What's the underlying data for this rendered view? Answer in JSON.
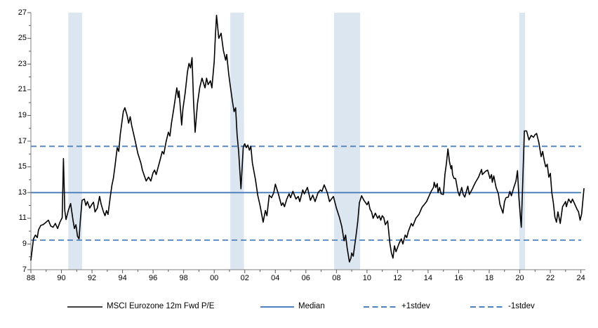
{
  "chart_data": {
    "type": "line",
    "title": "",
    "xlabel": "",
    "ylabel": "",
    "x_axis": {
      "min_year": 1988,
      "max_year": 2024,
      "major_tick_every_years": 2,
      "minor_tick_every_years": 1,
      "tick_labels": [
        "88",
        "90",
        "92",
        "94",
        "96",
        "98",
        "00",
        "02",
        "04",
        "06",
        "08",
        "10",
        "12",
        "14",
        "16",
        "18",
        "20",
        "22",
        "24"
      ]
    },
    "y_axis": {
      "min": 7,
      "max": 27,
      "major_tick_step": 2,
      "minor_tick_step": 1,
      "tick_labels": [
        "7",
        "9",
        "11",
        "13",
        "15",
        "17",
        "19",
        "21",
        "23",
        "25",
        "27"
      ]
    },
    "reference_lines": {
      "median": {
        "value": 13.0,
        "style": "solid"
      },
      "plus1stdev": {
        "value": 16.6,
        "style": "dashed"
      },
      "minus1stdev": {
        "value": 9.3,
        "style": "dashed"
      }
    },
    "shaded_bands_years": [
      [
        1990.45,
        1991.35
      ],
      [
        2001.05,
        2001.95
      ],
      [
        2007.85,
        2009.55
      ],
      [
        2019.97,
        2020.35
      ]
    ],
    "legend": [
      {
        "label": "MSCI Eurozone 12m Fwd P/E",
        "style": "solid",
        "color": "#000000"
      },
      {
        "label": "Median",
        "style": "solid",
        "color": "#4F81BD"
      },
      {
        "label": "+1stdev",
        "style": "dashed",
        "color": "#4F81BD"
      },
      {
        "label": "-1stdev",
        "style": "dashed",
        "color": "#4F81BD"
      }
    ],
    "series": [
      {
        "name": "MSCI Eurozone 12m Fwd P/E",
        "points": [
          [
            1988.0,
            7.75
          ],
          [
            1988.08,
            8.5
          ],
          [
            1988.17,
            9.4
          ],
          [
            1988.3,
            9.7
          ],
          [
            1988.42,
            9.5
          ],
          [
            1988.5,
            10.1
          ],
          [
            1988.65,
            10.45
          ],
          [
            1988.8,
            10.5
          ],
          [
            1988.95,
            10.65
          ],
          [
            1989.15,
            10.85
          ],
          [
            1989.3,
            10.4
          ],
          [
            1989.45,
            10.3
          ],
          [
            1989.6,
            10.6
          ],
          [
            1989.75,
            10.2
          ],
          [
            1989.9,
            10.7
          ],
          [
            1990.05,
            11.05
          ],
          [
            1990.13,
            15.65
          ],
          [
            1990.22,
            11.6
          ],
          [
            1990.3,
            10.9
          ],
          [
            1990.45,
            11.6
          ],
          [
            1990.6,
            12.15
          ],
          [
            1990.75,
            10.9
          ],
          [
            1990.85,
            10.2
          ],
          [
            1990.95,
            10.5
          ],
          [
            1991.05,
            9.6
          ],
          [
            1991.15,
            9.4
          ],
          [
            1991.25,
            11.0
          ],
          [
            1991.35,
            12.4
          ],
          [
            1991.5,
            12.5
          ],
          [
            1991.6,
            12.0
          ],
          [
            1991.7,
            12.3
          ],
          [
            1991.85,
            11.8
          ],
          [
            1992.0,
            12.1
          ],
          [
            1992.1,
            12.25
          ],
          [
            1992.2,
            11.5
          ],
          [
            1992.35,
            11.8
          ],
          [
            1992.5,
            12.7
          ],
          [
            1992.6,
            12.1
          ],
          [
            1992.75,
            11.5
          ],
          [
            1992.85,
            11.2
          ],
          [
            1992.95,
            11.6
          ],
          [
            1993.05,
            11.3
          ],
          [
            1993.2,
            12.7
          ],
          [
            1993.3,
            13.55
          ],
          [
            1993.4,
            14.1
          ],
          [
            1993.5,
            15.0
          ],
          [
            1993.65,
            16.5
          ],
          [
            1993.75,
            16.2
          ],
          [
            1993.85,
            17.5
          ],
          [
            1993.95,
            18.4
          ],
          [
            1994.05,
            19.3
          ],
          [
            1994.15,
            19.6
          ],
          [
            1994.3,
            19.0
          ],
          [
            1994.4,
            18.4
          ],
          [
            1994.5,
            18.9
          ],
          [
            1994.6,
            18.2
          ],
          [
            1994.7,
            17.7
          ],
          [
            1994.85,
            16.9
          ],
          [
            1995.0,
            16.05
          ],
          [
            1995.2,
            15.3
          ],
          [
            1995.3,
            14.75
          ],
          [
            1995.4,
            14.4
          ],
          [
            1995.55,
            13.9
          ],
          [
            1995.7,
            14.2
          ],
          [
            1995.85,
            13.9
          ],
          [
            1996.0,
            14.55
          ],
          [
            1996.1,
            14.75
          ],
          [
            1996.2,
            14.4
          ],
          [
            1996.45,
            15.5
          ],
          [
            1996.6,
            16.2
          ],
          [
            1996.7,
            16.0
          ],
          [
            1996.85,
            16.95
          ],
          [
            1997.0,
            17.7
          ],
          [
            1997.1,
            17.4
          ],
          [
            1997.2,
            18.4
          ],
          [
            1997.35,
            19.5
          ],
          [
            1997.55,
            21.15
          ],
          [
            1997.65,
            20.4
          ],
          [
            1997.7,
            20.9
          ],
          [
            1997.8,
            19.35
          ],
          [
            1997.87,
            18.25
          ],
          [
            1997.95,
            19.5
          ],
          [
            1998.1,
            20.75
          ],
          [
            1998.25,
            22.4
          ],
          [
            1998.35,
            23.05
          ],
          [
            1998.45,
            22.7
          ],
          [
            1998.55,
            23.5
          ],
          [
            1998.65,
            20.05
          ],
          [
            1998.75,
            17.7
          ],
          [
            1998.9,
            19.9
          ],
          [
            1999.05,
            21.15
          ],
          [
            1999.2,
            21.9
          ],
          [
            1999.4,
            21.15
          ],
          [
            1999.5,
            21.9
          ],
          [
            1999.6,
            21.4
          ],
          [
            1999.75,
            21.7
          ],
          [
            1999.85,
            21.15
          ],
          [
            2000.0,
            23.2
          ],
          [
            2000.07,
            25.0
          ],
          [
            2000.15,
            26.8
          ],
          [
            2000.3,
            25.0
          ],
          [
            2000.45,
            25.4
          ],
          [
            2000.6,
            24.05
          ],
          [
            2000.75,
            23.3
          ],
          [
            2000.82,
            23.75
          ],
          [
            2000.95,
            22.2
          ],
          [
            2001.05,
            21.3
          ],
          [
            2001.2,
            20.05
          ],
          [
            2001.3,
            19.3
          ],
          [
            2001.4,
            19.6
          ],
          [
            2001.5,
            17.5
          ],
          [
            2001.6,
            16.2
          ],
          [
            2001.75,
            13.3
          ],
          [
            2001.9,
            16.55
          ],
          [
            2002.0,
            16.8
          ],
          [
            2002.1,
            16.5
          ],
          [
            2002.2,
            16.7
          ],
          [
            2002.3,
            16.3
          ],
          [
            2002.4,
            16.6
          ],
          [
            2002.5,
            15.3
          ],
          [
            2002.7,
            14.0
          ],
          [
            2002.85,
            12.8
          ],
          [
            2003.0,
            12.0
          ],
          [
            2003.2,
            10.7
          ],
          [
            2003.35,
            11.6
          ],
          [
            2003.45,
            11.2
          ],
          [
            2003.6,
            12.8
          ],
          [
            2003.75,
            12.6
          ],
          [
            2003.9,
            13.0
          ],
          [
            2004.0,
            13.65
          ],
          [
            2004.2,
            12.9
          ],
          [
            2004.4,
            12.0
          ],
          [
            2004.5,
            12.2
          ],
          [
            2004.6,
            11.9
          ],
          [
            2004.75,
            12.5
          ],
          [
            2004.9,
            12.9
          ],
          [
            2005.0,
            12.6
          ],
          [
            2005.15,
            13.1
          ],
          [
            2005.35,
            12.5
          ],
          [
            2005.5,
            12.7
          ],
          [
            2005.6,
            12.3
          ],
          [
            2005.8,
            13.2
          ],
          [
            2005.9,
            12.9
          ],
          [
            2006.1,
            13.4
          ],
          [
            2006.3,
            12.4
          ],
          [
            2006.45,
            12.8
          ],
          [
            2006.6,
            12.3
          ],
          [
            2006.8,
            13.0
          ],
          [
            2006.95,
            13.2
          ],
          [
            2007.05,
            13.1
          ],
          [
            2007.2,
            13.6
          ],
          [
            2007.4,
            13.0
          ],
          [
            2007.55,
            12.3
          ],
          [
            2007.8,
            12.7
          ],
          [
            2008.0,
            11.8
          ],
          [
            2008.2,
            11.05
          ],
          [
            2008.35,
            10.35
          ],
          [
            2008.5,
            9.25
          ],
          [
            2008.6,
            9.7
          ],
          [
            2008.7,
            8.7
          ],
          [
            2008.85,
            7.6
          ],
          [
            2008.95,
            7.9
          ],
          [
            2009.0,
            8.3
          ],
          [
            2009.1,
            8.05
          ],
          [
            2009.3,
            9.8
          ],
          [
            2009.4,
            10.8
          ],
          [
            2009.5,
            12.2
          ],
          [
            2009.65,
            12.75
          ],
          [
            2009.8,
            12.4
          ],
          [
            2010.0,
            12.05
          ],
          [
            2010.1,
            12.3
          ],
          [
            2010.2,
            11.7
          ],
          [
            2010.3,
            11.5
          ],
          [
            2010.4,
            11.0
          ],
          [
            2010.55,
            11.4
          ],
          [
            2010.7,
            11.0
          ],
          [
            2010.8,
            11.2
          ],
          [
            2010.9,
            10.85
          ],
          [
            2011.0,
            11.2
          ],
          [
            2011.1,
            11.05
          ],
          [
            2011.2,
            10.5
          ],
          [
            2011.35,
            10.8
          ],
          [
            2011.5,
            9.05
          ],
          [
            2011.6,
            8.3
          ],
          [
            2011.7,
            7.9
          ],
          [
            2011.8,
            8.85
          ],
          [
            2011.9,
            8.4
          ],
          [
            2012.1,
            9.05
          ],
          [
            2012.25,
            9.4
          ],
          [
            2012.35,
            9.0
          ],
          [
            2012.5,
            9.7
          ],
          [
            2012.6,
            9.5
          ],
          [
            2012.7,
            9.95
          ],
          [
            2012.9,
            10.6
          ],
          [
            2013.0,
            10.4
          ],
          [
            2013.2,
            11.0
          ],
          [
            2013.4,
            11.3
          ],
          [
            2013.6,
            11.85
          ],
          [
            2013.9,
            12.3
          ],
          [
            2014.05,
            12.7
          ],
          [
            2014.2,
            13.1
          ],
          [
            2014.35,
            13.4
          ],
          [
            2014.4,
            13.8
          ],
          [
            2014.5,
            13.4
          ],
          [
            2014.6,
            13.7
          ],
          [
            2014.65,
            13.0
          ],
          [
            2014.75,
            13.4
          ],
          [
            2014.85,
            12.9
          ],
          [
            2015.0,
            12.85
          ],
          [
            2015.1,
            14.4
          ],
          [
            2015.2,
            15.3
          ],
          [
            2015.3,
            16.4
          ],
          [
            2015.4,
            15.4
          ],
          [
            2015.5,
            14.85
          ],
          [
            2015.55,
            15.1
          ],
          [
            2015.6,
            14.4
          ],
          [
            2015.7,
            14.1
          ],
          [
            2015.8,
            14.1
          ],
          [
            2015.95,
            13.1
          ],
          [
            2016.05,
            12.75
          ],
          [
            2016.2,
            13.4
          ],
          [
            2016.3,
            12.85
          ],
          [
            2016.4,
            12.65
          ],
          [
            2016.6,
            13.5
          ],
          [
            2016.7,
            12.85
          ],
          [
            2016.9,
            13.3
          ],
          [
            2017.0,
            13.55
          ],
          [
            2017.1,
            13.8
          ],
          [
            2017.3,
            14.2
          ],
          [
            2017.5,
            14.8
          ],
          [
            2017.55,
            14.4
          ],
          [
            2017.75,
            14.65
          ],
          [
            2017.9,
            14.75
          ],
          [
            2018.05,
            14.1
          ],
          [
            2018.15,
            14.4
          ],
          [
            2018.2,
            13.8
          ],
          [
            2018.3,
            14.3
          ],
          [
            2018.45,
            13.4
          ],
          [
            2018.6,
            12.9
          ],
          [
            2018.7,
            12.1
          ],
          [
            2018.9,
            11.4
          ],
          [
            2019.0,
            12.3
          ],
          [
            2019.1,
            12.6
          ],
          [
            2019.25,
            12.65
          ],
          [
            2019.35,
            13.1
          ],
          [
            2019.45,
            12.75
          ],
          [
            2019.6,
            13.35
          ],
          [
            2019.75,
            13.9
          ],
          [
            2019.85,
            14.7
          ],
          [
            2019.95,
            12.55
          ],
          [
            2020.05,
            11.0
          ],
          [
            2020.1,
            10.3
          ],
          [
            2020.3,
            17.8
          ],
          [
            2020.45,
            17.8
          ],
          [
            2020.6,
            17.1
          ],
          [
            2020.75,
            17.45
          ],
          [
            2020.9,
            17.3
          ],
          [
            2021.0,
            17.5
          ],
          [
            2021.1,
            17.6
          ],
          [
            2021.25,
            16.9
          ],
          [
            2021.4,
            15.8
          ],
          [
            2021.5,
            16.2
          ],
          [
            2021.6,
            15.5
          ],
          [
            2021.7,
            15.0
          ],
          [
            2021.8,
            15.2
          ],
          [
            2021.9,
            14.2
          ],
          [
            2022.0,
            14.5
          ],
          [
            2022.1,
            13.0
          ],
          [
            2022.2,
            12.2
          ],
          [
            2022.3,
            11.1
          ],
          [
            2022.4,
            10.7
          ],
          [
            2022.5,
            11.5
          ],
          [
            2022.55,
            11.2
          ],
          [
            2022.65,
            10.6
          ],
          [
            2022.8,
            11.9
          ],
          [
            2023.0,
            12.3
          ],
          [
            2023.05,
            11.9
          ],
          [
            2023.2,
            12.5
          ],
          [
            2023.35,
            12.2
          ],
          [
            2023.45,
            12.5
          ],
          [
            2023.6,
            12.1
          ],
          [
            2023.75,
            11.7
          ],
          [
            2023.85,
            11.5
          ],
          [
            2023.95,
            10.85
          ],
          [
            2024.05,
            11.35
          ],
          [
            2024.2,
            13.3
          ]
        ]
      }
    ]
  },
  "colors": {
    "series_line": "#000000",
    "reference_blue": "#4F81BD",
    "band_fill": "#DCE6F1",
    "axis_line": "#808080",
    "tick_mark": "#595959",
    "label_text": "#000000",
    "background": "#FFFFFF"
  }
}
